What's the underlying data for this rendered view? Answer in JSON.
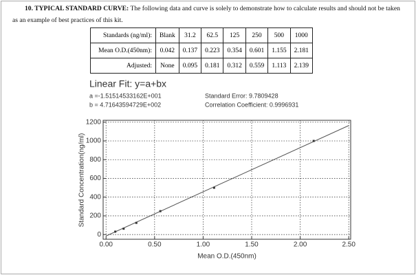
{
  "text": {
    "heading": "10. TYPICAL STANDARD CURVE:",
    "body": "The following data and curve is solely to demonstrate how to calculate results and should not be taken as an example of best practices of this kit."
  },
  "table": {
    "rows": [
      [
        "Standards (ng/ml):",
        "Blank",
        "31.2",
        "62.5",
        "125",
        "250",
        "500",
        "1000"
      ],
      [
        "Mean O.D.(450nm):",
        "0.042",
        "0.137",
        "0.223",
        "0.354",
        "0.601",
        "1.155",
        "2.181"
      ],
      [
        "Adjusted:",
        "None",
        "0.095",
        "0.181",
        "0.312",
        "0.559",
        "1.113",
        "2.139"
      ]
    ]
  },
  "chart_data": {
    "type": "scatter",
    "title": "Linear Fit: y=a+bx",
    "fit": {
      "a": {
        "value": -15.1514533162,
        "label": "a =-1.51514533162E+001"
      },
      "b": {
        "value": 471.643594729,
        "label": "b = 4.71643594729E+002"
      }
    },
    "annotations": [
      "Standard Error: 9.7809428",
      "Correlation Coefficient: 0.9996931"
    ],
    "x_label": "Mean O.D.(450nm)",
    "y_label": "Standard Concentration(ng/ml)",
    "series": [
      {
        "color": "#333333",
        "x": [
          0.095,
          0.181,
          0.312,
          0.559,
          1.113,
          2.139
        ],
        "values": [
          31.2,
          62.5,
          125,
          250,
          500,
          1000
        ]
      }
    ],
    "line_color": "#555555",
    "xlim": [
      -0.03,
      2.52
    ],
    "ylim": [
      -50,
      1220
    ],
    "xticks": [
      {
        "value": 0,
        "label": "0.00"
      },
      {
        "value": 0.5,
        "label": "0.50"
      },
      {
        "value": 1,
        "label": "1.00"
      },
      {
        "value": 1.5,
        "label": "1.50"
      },
      {
        "value": 2,
        "label": "2.00"
      },
      {
        "value": 2.5,
        "label": "2.50"
      }
    ],
    "yticks": [
      0,
      200,
      400,
      600,
      800,
      1000,
      1200
    ],
    "grid": true
  }
}
